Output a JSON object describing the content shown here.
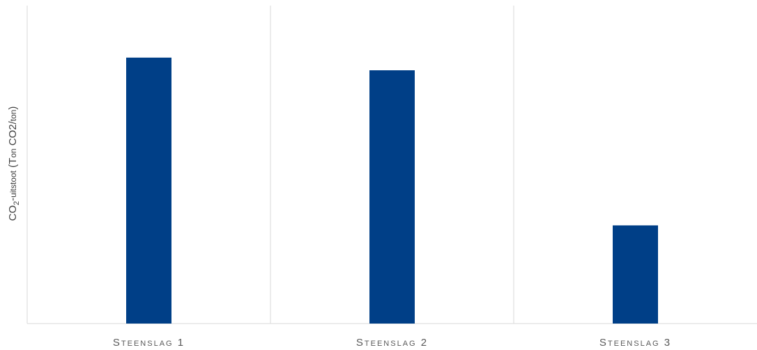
{
  "chart_data": {
    "type": "bar",
    "title": "",
    "xlabel": "",
    "ylabel": {
      "main": "CO",
      "subscript": "2",
      "rest_prefix": "-",
      "rest_smallcaps": "uitstoot",
      "rest_mid": " (T",
      "rest_smallcaps2": "on",
      "rest_suffix": " CO2/",
      "rest_smallcaps3": "ton",
      "rest_end": ")"
    },
    "categories": [
      {
        "first": "S",
        "rest": "TEENSLAG",
        "num": "1"
      },
      {
        "first": "S",
        "rest": "TEENSLAG",
        "num": "2"
      },
      {
        "first": "S",
        "rest": "TEENSLAG",
        "num": "3"
      }
    ],
    "values": [
      0.84,
      0.8,
      0.31
    ],
    "ylim": [
      0,
      1
    ],
    "grid": "vertical separators between categories",
    "bar_color": "#003f87",
    "grid_color": "#d9d9d9",
    "text_color": "#595959"
  }
}
